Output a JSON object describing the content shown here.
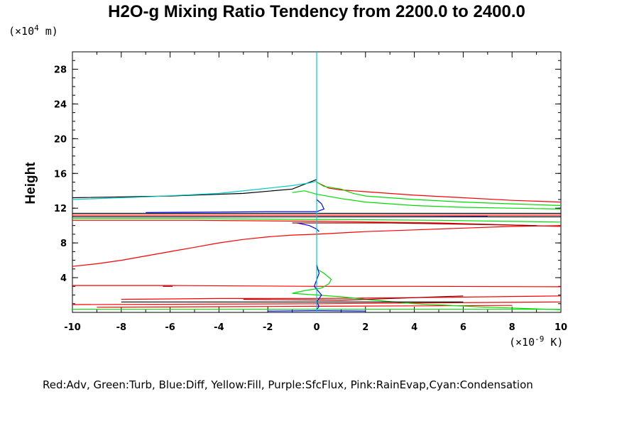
{
  "chart_data": {
    "type": "line",
    "title": "H2O-g Mixing Ratio Tendency from 2200.0 to 2400.0",
    "ylabel": "Height",
    "yunit": {
      "prefix": "(×10",
      "exp": "4",
      "suffix": " m)"
    },
    "xunit": {
      "prefix": "(×10",
      "exp": "-9",
      "suffix": " K)"
    },
    "xlim": [
      -10,
      10
    ],
    "ylim": [
      0,
      30
    ],
    "xticks": [
      -10,
      -8,
      -6,
      -4,
      -2,
      0,
      2,
      4,
      6,
      8,
      10
    ],
    "yticks": [
      4,
      8,
      12,
      16,
      20,
      24,
      28
    ],
    "legend_text": "Red:Adv, Green:Turb, Blue:Diff, Yellow:Fill, Purple:SfcFlux, Pink:RainEvap,Cyan:Condensation",
    "series": [
      {
        "name": "Adv",
        "color": "#ff0000",
        "points": [
          [
            -10,
            5.3
          ],
          [
            -9,
            5.6
          ],
          [
            -8,
            6.0
          ],
          [
            -7,
            6.5
          ],
          [
            -6,
            7.0
          ],
          [
            -5,
            7.5
          ],
          [
            -4,
            8.0
          ],
          [
            -3,
            8.4
          ],
          [
            -2,
            8.7
          ],
          [
            -1,
            8.9
          ],
          [
            0,
            9.0
          ],
          [
            2,
            9.3
          ],
          [
            4,
            9.5
          ],
          [
            6,
            9.7
          ],
          [
            8,
            9.9
          ],
          [
            10,
            10.0
          ]
        ]
      },
      {
        "name": "Adv",
        "color": "#ff0000",
        "points": [
          [
            0,
            15.0
          ],
          [
            0.5,
            14.3
          ],
          [
            1,
            14.1
          ],
          [
            2,
            13.9
          ],
          [
            4,
            13.5
          ],
          [
            6,
            13.2
          ],
          [
            8,
            12.9
          ],
          [
            10,
            12.7
          ]
        ]
      },
      {
        "name": "Adv",
        "color": "#ff0000",
        "points": [
          [
            -10,
            3.1
          ],
          [
            -6,
            3.1
          ],
          [
            0,
            3.0
          ],
          [
            4,
            3.0
          ],
          [
            10,
            2.95
          ]
        ]
      },
      {
        "name": "Adv",
        "color": "#ff0000",
        "points": [
          [
            -10,
            10.6
          ],
          [
            -5,
            10.6
          ],
          [
            0,
            10.5
          ],
          [
            5,
            10.3
          ],
          [
            10,
            9.9
          ]
        ]
      },
      {
        "name": "Adv",
        "color": "#ff0000",
        "points": [
          [
            -8,
            1.5
          ],
          [
            -4,
            1.6
          ],
          [
            0,
            1.6
          ],
          [
            4,
            1.7
          ],
          [
            10,
            1.9
          ]
        ]
      },
      {
        "name": "Adv",
        "color": "#ff0000",
        "points": [
          [
            -10,
            0.9
          ],
          [
            -5,
            0.95
          ],
          [
            0,
            1.0
          ],
          [
            5,
            1.1
          ],
          [
            10,
            1.2
          ]
        ]
      },
      {
        "name": "Adv",
        "color": "#ff0000",
        "points": [
          [
            -9,
            0.6
          ],
          [
            -4,
            0.65
          ],
          [
            0,
            0.7
          ],
          [
            4,
            0.75
          ],
          [
            8,
            0.8
          ]
        ]
      },
      {
        "name": "Adv",
        "color": "#ff0000",
        "points": [
          [
            -10,
            11.2
          ],
          [
            0,
            11.2
          ],
          [
            10,
            11.2
          ]
        ]
      },
      {
        "name": "Turb",
        "color": "#00dd00",
        "points": [
          [
            0,
            15.0
          ],
          [
            0.3,
            14.5
          ],
          [
            1,
            14.2
          ],
          [
            1.5,
            13.7
          ],
          [
            2,
            13.4
          ],
          [
            4,
            13.0
          ],
          [
            6,
            12.7
          ],
          [
            8,
            12.5
          ],
          [
            10,
            12.3
          ]
        ]
      },
      {
        "name": "Turb",
        "color": "#00dd00",
        "points": [
          [
            -1,
            13.8
          ],
          [
            -0.5,
            14.0
          ],
          [
            0,
            13.6
          ],
          [
            1,
            13.1
          ],
          [
            2,
            12.7
          ],
          [
            4,
            12.3
          ],
          [
            6,
            12.1
          ],
          [
            8,
            12.0
          ],
          [
            10,
            11.9
          ]
        ]
      },
      {
        "name": "Turb",
        "color": "#00dd00",
        "points": [
          [
            -10,
            10.8
          ],
          [
            -5,
            10.8
          ],
          [
            0,
            10.7
          ],
          [
            5,
            10.6
          ],
          [
            10,
            10.4
          ]
        ]
      },
      {
        "name": "Turb",
        "color": "#00dd00",
        "points": [
          [
            0,
            5.0
          ],
          [
            0.3,
            4.5
          ],
          [
            0.6,
            3.8
          ],
          [
            0.5,
            3.3
          ],
          [
            0.2,
            2.8
          ],
          [
            -0.5,
            2.5
          ],
          [
            -1,
            2.2
          ],
          [
            0,
            2.0
          ],
          [
            1,
            1.8
          ],
          [
            2,
            1.5
          ],
          [
            4,
            1.0
          ],
          [
            7,
            0.6
          ],
          [
            10,
            0.3
          ]
        ]
      },
      {
        "name": "Turb",
        "color": "#00dd00",
        "points": [
          [
            -10,
            0.35
          ],
          [
            -5,
            0.35
          ],
          [
            0,
            0.35
          ],
          [
            5,
            0.35
          ],
          [
            10,
            0.35
          ]
        ]
      },
      {
        "name": "Diff",
        "color": "#0000ff",
        "points": [
          [
            -7,
            11.5
          ],
          [
            -4,
            11.55
          ],
          [
            -2,
            11.6
          ],
          [
            0,
            11.6
          ],
          [
            0.3,
            11.9
          ],
          [
            0.2,
            12.5
          ],
          [
            0,
            13.0
          ]
        ]
      },
      {
        "name": "Diff",
        "color": "#0000ff",
        "points": [
          [
            0,
            5.5
          ],
          [
            0.1,
            4.5
          ],
          [
            -0.1,
            3.0
          ],
          [
            0.2,
            2.0
          ],
          [
            0,
            1.2
          ],
          [
            0.1,
            0.7
          ],
          [
            0,
            0.3
          ]
        ]
      },
      {
        "name": "Diff",
        "color": "#0000ff",
        "points": [
          [
            -0.8,
            10.3
          ],
          [
            -0.3,
            10.0
          ],
          [
            0,
            9.6
          ],
          [
            0.1,
            9.3
          ]
        ]
      },
      {
        "name": "Diff",
        "color": "#0000ff",
        "points": [
          [
            0,
            11.0
          ],
          [
            3,
            11.0
          ],
          [
            7,
            11.05
          ]
        ]
      },
      {
        "name": "Diff",
        "color": "#0000ff",
        "points": [
          [
            -2,
            0.15
          ],
          [
            0,
            0.2
          ],
          [
            2,
            0.15
          ]
        ]
      },
      {
        "name": "Fill",
        "color": "#000000",
        "points": [
          [
            -10,
            13.2
          ],
          [
            -6,
            13.4
          ],
          [
            -3,
            13.7
          ],
          [
            -1,
            14.2
          ],
          [
            0,
            15.3
          ]
        ]
      },
      {
        "name": "Fill",
        "color": "#000000",
        "points": [
          [
            -10,
            11.0
          ],
          [
            0,
            11.0
          ],
          [
            10,
            11.0
          ]
        ]
      },
      {
        "name": "Fill",
        "color": "#000000",
        "points": [
          [
            -10,
            11.4
          ],
          [
            0,
            11.4
          ],
          [
            10,
            11.4
          ]
        ]
      },
      {
        "name": "Fill",
        "color": "#000000",
        "points": [
          [
            -8,
            1.2
          ],
          [
            -4,
            1.2
          ],
          [
            0,
            1.2
          ],
          [
            6,
            1.2
          ]
        ]
      },
      {
        "name": "SfcFlux",
        "color": "#990000",
        "points": [
          [
            -1,
            10.3
          ],
          [
            3,
            10.3
          ],
          [
            7,
            10.1
          ],
          [
            9,
            10.0
          ]
        ]
      },
      {
        "name": "SfcFlux",
        "color": "#990000",
        "points": [
          [
            -3,
            1.5
          ],
          [
            1,
            1.4
          ],
          [
            6,
            1.9
          ]
        ]
      },
      {
        "name": "SfcFlux",
        "color": "#990000",
        "points": [
          [
            -6.3,
            3.0
          ],
          [
            -5.9,
            3.0
          ]
        ]
      },
      {
        "name": "Condensation",
        "color": "#00cccc",
        "points": [
          [
            -10,
            13.0
          ],
          [
            -7,
            13.3
          ],
          [
            -4,
            13.7
          ],
          [
            -2,
            14.3
          ],
          [
            -1,
            14.6
          ],
          [
            -0.3,
            14.9
          ],
          [
            0,
            15.1
          ]
        ]
      },
      {
        "name": "Condensation",
        "color": "#00cccc",
        "points": [
          [
            0,
            30
          ],
          [
            0,
            0
          ]
        ]
      }
    ]
  }
}
